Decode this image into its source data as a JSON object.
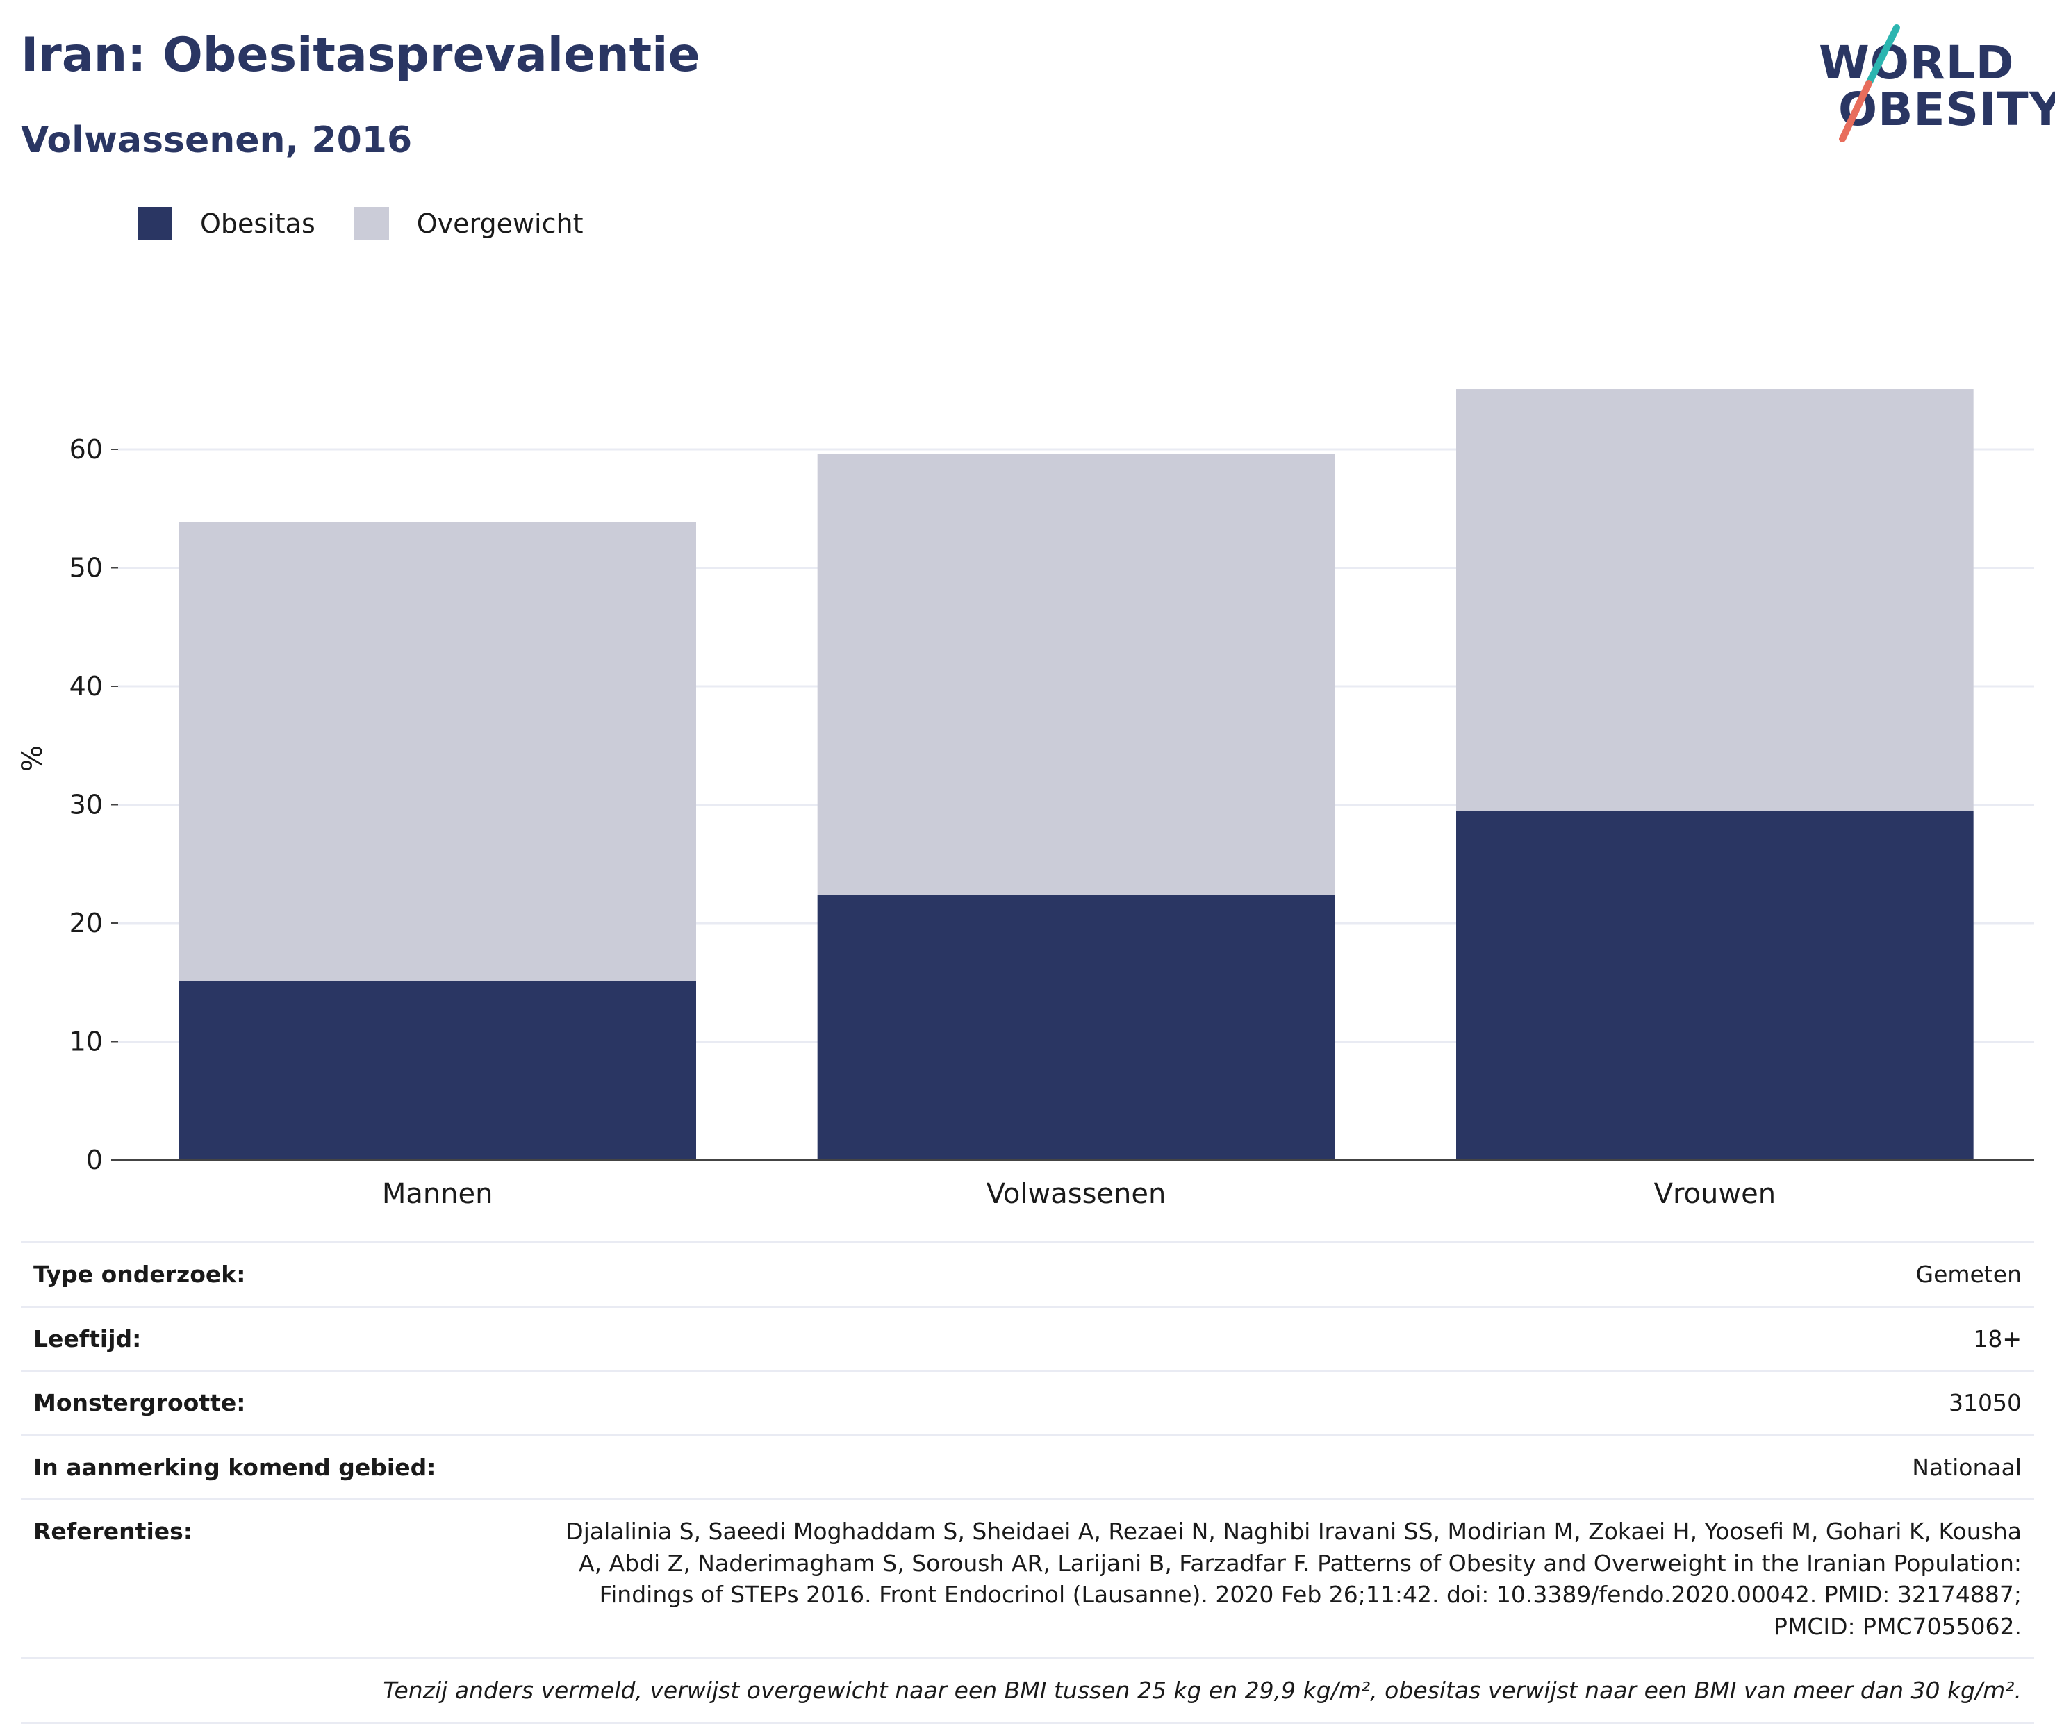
{
  "header": {
    "title": "Iran: Obesitasprevalentie",
    "subtitle": "Volwassenen, 2016"
  },
  "logo": {
    "line1": "WORLD",
    "line2": "OBESITY",
    "colors": {
      "text": "#2a3663",
      "slash_top": "#2bb5b0",
      "slash_bottom": "#e86d5c"
    }
  },
  "legend": [
    {
      "label": "Obesitas",
      "color": "#2a3663"
    },
    {
      "label": "Overgewicht",
      "color": "#cbccd8"
    }
  ],
  "chart_data": {
    "type": "bar",
    "stacked": true,
    "categories": [
      "Mannen",
      "Volwassenen",
      "Vrouwen"
    ],
    "series": [
      {
        "name": "Obesitas",
        "values": [
          15.1,
          22.4,
          29.5
        ],
        "color": "#2a3663"
      },
      {
        "name": "Overgewicht",
        "values": [
          38.8,
          37.2,
          35.6
        ],
        "color": "#cbccd8"
      }
    ],
    "ylabel": "%",
    "xlabel": "",
    "ylim": [
      0,
      65
    ],
    "yticks": [
      0,
      10,
      20,
      30,
      40,
      50,
      60
    ],
    "grid": true,
    "legend_position": "top-left"
  },
  "info": [
    {
      "label": "Type onderzoek:",
      "value": "Gemeten"
    },
    {
      "label": "Leeftijd:",
      "value": "18+"
    },
    {
      "label": "Monstergrootte:",
      "value": "31050"
    },
    {
      "label": "In aanmerking komend gebied:",
      "value": "Nationaal"
    },
    {
      "label": "Referenties:",
      "value": "Djalalinia S, Saeedi Moghaddam S, Sheidaei A, Rezaei N, Naghibi Iravani SS, Modirian M, Zokaei H, Yoosefi M, Gohari K, Kousha A, Abdi Z, Naderimagham S, Soroush AR, Larijani B, Farzadfar F. Patterns of Obesity and Overweight in the Iranian Population: Findings of STEPs 2016. Front Endocrinol (Lausanne). 2020 Feb 26;11:42. doi: 10.3389/fendo.2020.00042. PMID: 32174887; PMCID: PMC7055062."
    }
  ],
  "footnote": "Tenzij anders vermeld, verwijst overgewicht naar een BMI tussen 25 kg en 29,9 kg/m², obesitas verwijst naar een BMI van meer dan 30 kg/m²."
}
